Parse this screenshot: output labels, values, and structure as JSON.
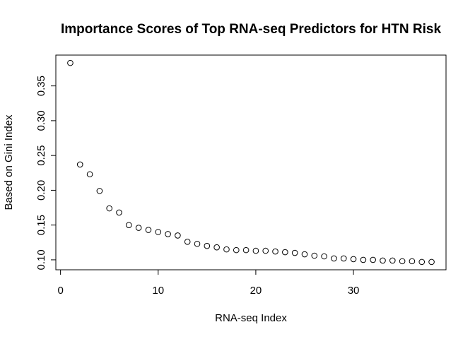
{
  "chart_data": {
    "type": "scatter",
    "title": "Importance Scores of Top RNA-seq Predictors for HTN Risk",
    "xlabel": "RNA-seq Index",
    "ylabel": "Based on Gini Index",
    "x": [
      1,
      2,
      3,
      4,
      5,
      6,
      7,
      8,
      9,
      10,
      11,
      12,
      13,
      14,
      15,
      16,
      17,
      18,
      19,
      20,
      21,
      22,
      23,
      24,
      25,
      26,
      27,
      28,
      29,
      30,
      31,
      32,
      33,
      34,
      35,
      36,
      37,
      38
    ],
    "y": [
      0.383,
      0.237,
      0.223,
      0.199,
      0.174,
      0.168,
      0.15,
      0.146,
      0.143,
      0.14,
      0.137,
      0.135,
      0.126,
      0.123,
      0.12,
      0.118,
      0.115,
      0.114,
      0.114,
      0.113,
      0.113,
      0.112,
      0.111,
      0.11,
      0.108,
      0.106,
      0.105,
      0.102,
      0.102,
      0.101,
      0.1,
      0.1,
      0.099,
      0.099,
      0.098,
      0.098,
      0.097,
      0.097
    ],
    "xlim": [
      -0.48,
      39.48
    ],
    "ylim": [
      0.0857,
      0.3943
    ],
    "xticks": [
      0,
      10,
      20,
      30
    ],
    "xtick_labels": [
      "0",
      "10",
      "20",
      "30"
    ],
    "yticks": [
      0.1,
      0.15,
      0.2,
      0.25,
      0.3,
      0.35
    ],
    "ytick_labels": [
      "0.10",
      "0.15",
      "0.20",
      "0.25",
      "0.30",
      "0.35"
    ],
    "marker": "open-circle",
    "grid": false,
    "legend": false
  }
}
